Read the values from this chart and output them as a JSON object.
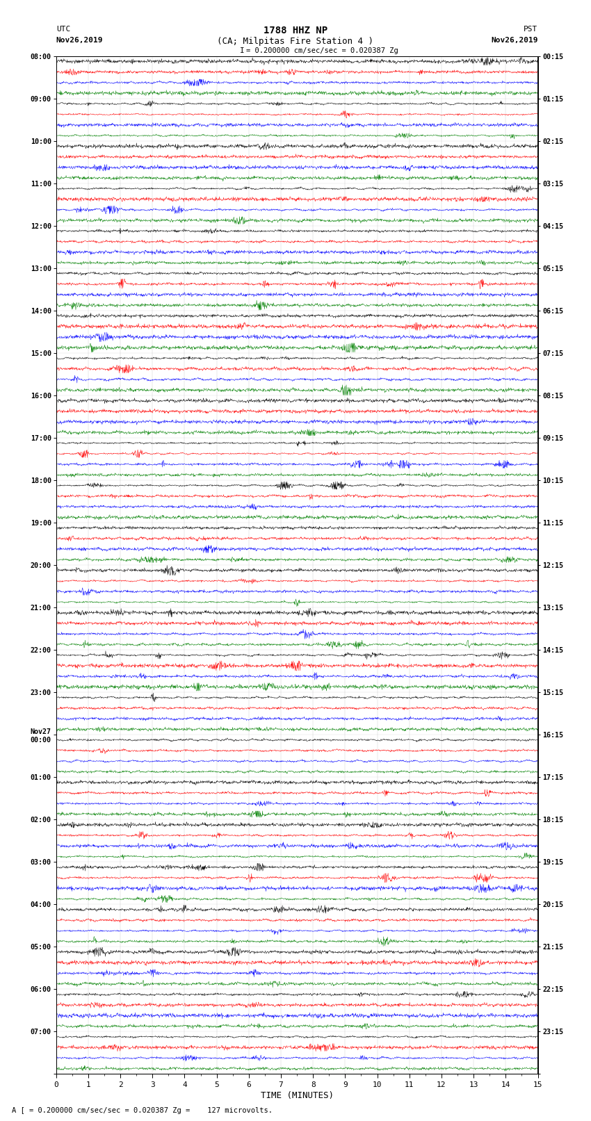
{
  "title_line1": "1788 HHZ NP",
  "title_line2": "(CA; Milpitas Fire Station 4 )",
  "scale_bar_text": "= 0.200000 cm/sec/sec = 0.020387 Zg",
  "utc_label": "UTC",
  "utc_date": "Nov26,2019",
  "pst_label": "PST",
  "pst_date": "Nov26,2019",
  "xlabel": "TIME (MINUTES)",
  "bottom_note": "A [ = 0.200000 cm/sec/sec = 0.020387 Zg =    127 microvolts.",
  "left_labels": [
    "08:00",
    "09:00",
    "10:00",
    "11:00",
    "12:00",
    "13:00",
    "14:00",
    "15:00",
    "16:00",
    "17:00",
    "18:00",
    "19:00",
    "20:00",
    "21:00",
    "22:00",
    "23:00",
    "Nov27\n00:00",
    "01:00",
    "02:00",
    "03:00",
    "04:00",
    "05:00",
    "06:00",
    "07:00"
  ],
  "right_labels": [
    "00:15",
    "01:15",
    "02:15",
    "03:15",
    "04:15",
    "05:15",
    "06:15",
    "07:15",
    "08:15",
    "09:15",
    "10:15",
    "11:15",
    "12:15",
    "13:15",
    "14:15",
    "15:15",
    "16:15",
    "17:15",
    "18:15",
    "19:15",
    "20:15",
    "21:15",
    "22:15",
    "23:15"
  ],
  "n_groups": 24,
  "traces_per_group": 4,
  "colors": [
    "black",
    "red",
    "blue",
    "green"
  ],
  "x_ticks": [
    0,
    1,
    2,
    3,
    4,
    5,
    6,
    7,
    8,
    9,
    10,
    11,
    12,
    13,
    14,
    15
  ],
  "xlim": [
    0,
    15
  ],
  "background_color": "white",
  "fig_width": 8.5,
  "fig_height": 16.13
}
